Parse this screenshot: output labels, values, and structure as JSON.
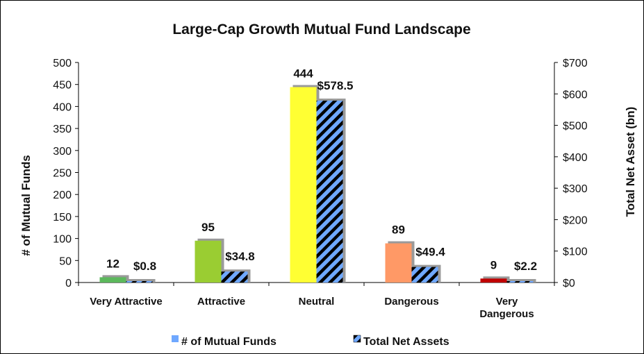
{
  "chart_data": {
    "type": "bar",
    "title": "Large-Cap Growth Mutual Fund Landscape",
    "categories": [
      [
        "Very Attractive"
      ],
      [
        "Attractive"
      ],
      [
        "Neutral"
      ],
      [
        "Dangerous"
      ],
      [
        "Very",
        "Dangerous"
      ]
    ],
    "ylabel_left": "# of Mutual Funds",
    "ylabel_right": "Total Net Asset (bn)",
    "ylim_left": [
      0,
      500
    ],
    "ylim_right": [
      0,
      700
    ],
    "yticks_left": [
      "0",
      "50",
      "100",
      "150",
      "200",
      "250",
      "300",
      "350",
      "400",
      "450",
      "500"
    ],
    "yticks_right": [
      "$0",
      "$100",
      "$200",
      "$300",
      "$400",
      "$500",
      "$600",
      "$700"
    ],
    "series": [
      {
        "name": "# of Mutual Funds",
        "axis": "left",
        "values": [
          12,
          95,
          444,
          89,
          9
        ],
        "labels": [
          "12",
          "95",
          "444",
          "89",
          "9"
        ],
        "colors": [
          "#5cb85c",
          "#9acd32",
          "#ffff33",
          "#ff9966",
          "#c00000"
        ]
      },
      {
        "name": "Total Net Assets",
        "axis": "right",
        "values": [
          0.8,
          34.8,
          578.5,
          49.4,
          2.2
        ],
        "labels": [
          "$0.8",
          "$34.8",
          "$578.5",
          "$49.4",
          "$2.2"
        ],
        "pattern": "black-blue-stripes"
      }
    ],
    "legend": {
      "position": "bottom"
    },
    "grid": false
  },
  "colors": {
    "stripe_dark": "#000000",
    "stripe_light": "#6fa8ff",
    "legend_funds": "#6fa8ff"
  }
}
